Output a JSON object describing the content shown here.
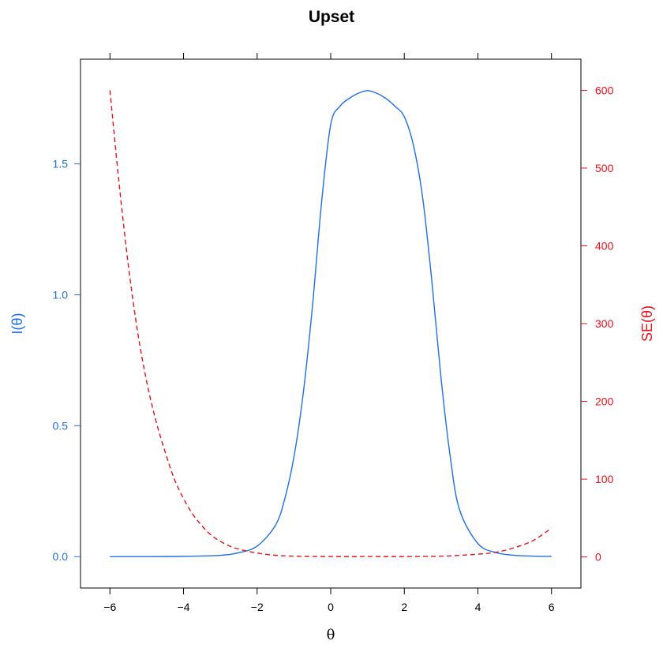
{
  "chart_data": {
    "type": "line",
    "title": "Upset",
    "xlabel": "θ",
    "ylabel_left": "I(θ)",
    "ylabel_right": "SE(θ)",
    "xlim": [
      -6.8,
      6.8
    ],
    "ylim_left": [
      -0.12,
      1.9
    ],
    "ylim_right": [
      -40,
      640
    ],
    "x_ticks": [
      -6,
      -4,
      -2,
      0,
      2,
      4,
      6
    ],
    "y_ticks_left": [
      0.0,
      0.5,
      1.0,
      1.5
    ],
    "y_ticks_right": [
      0,
      100,
      200,
      300,
      400,
      500,
      600
    ],
    "grid": false,
    "colors": {
      "information": "#1f6fe6",
      "se": "#e8101a",
      "axis": "#000000"
    },
    "series": [
      {
        "name": "I(θ)",
        "axis": "left",
        "line_style": "solid",
        "color": "#1f6fe6",
        "x": [
          -6,
          -5,
          -4,
          -3,
          -2.5,
          -2,
          -1.5,
          -1.25,
          -1,
          -0.75,
          -0.5,
          -0.25,
          0,
          0.25,
          0.5,
          0.75,
          1,
          1.25,
          1.5,
          1.75,
          2,
          2.25,
          2.5,
          2.75,
          3,
          3.25,
          3.5,
          4,
          4.5,
          5,
          5.5,
          6
        ],
        "y": [
          0.0,
          0.0,
          0.001,
          0.005,
          0.015,
          0.04,
          0.12,
          0.22,
          0.38,
          0.62,
          0.95,
          1.35,
          1.65,
          1.72,
          1.75,
          1.77,
          1.78,
          1.77,
          1.75,
          1.72,
          1.68,
          1.57,
          1.37,
          1.05,
          0.68,
          0.38,
          0.18,
          0.05,
          0.015,
          0.005,
          0.002,
          0.001
        ]
      },
      {
        "name": "SE(θ)",
        "axis": "right",
        "line_style": "dashed",
        "color": "#e8101a",
        "x": [
          -6,
          -5.75,
          -5.5,
          -5.25,
          -5,
          -4.75,
          -4.5,
          -4.25,
          -4,
          -3.75,
          -3.5,
          -3.25,
          -3,
          -2.75,
          -2.5,
          -2,
          -1.5,
          -1,
          0,
          1,
          2,
          3,
          3.5,
          4,
          4.5,
          5,
          5.5,
          6
        ],
        "y": [
          600,
          480,
          375,
          290,
          225,
          175,
          135,
          100,
          75,
          55,
          40,
          28,
          20,
          14,
          10,
          5,
          2,
          1,
          0.5,
          0.5,
          0.5,
          1,
          2,
          3.5,
          6,
          12,
          21,
          37
        ]
      }
    ]
  }
}
